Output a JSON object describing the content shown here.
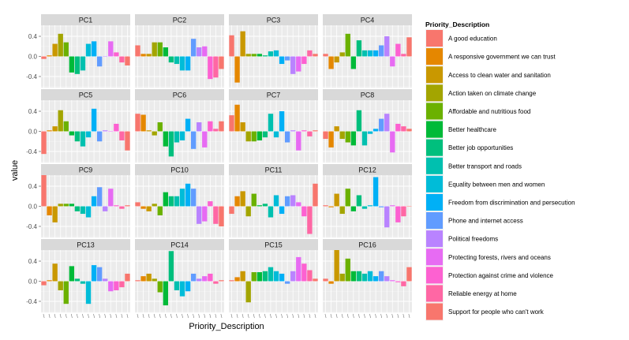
{
  "chart_data": {
    "type": "bar",
    "facet_layout": "4x4",
    "xlabel": "Priority_Description",
    "ylabel": "value",
    "ylim": [
      -0.62,
      0.62
    ],
    "y_ticks": [
      -0.4,
      0.0,
      0.4
    ],
    "y_tick_labels": [
      "-0.4",
      "0.0",
      "0.4"
    ],
    "legend_title": "Priority_Description",
    "legend_position": "right",
    "categories": [
      "A good education",
      "A responsive government we can trust",
      "Access to clean water and sanitation",
      "Action taken on climate change",
      "Affordable and nutritious food",
      "Better healthcare",
      "Better job opportunities",
      "Better transport and roads",
      "Equality between men and women",
      "Freedom from discrimination and persecution",
      "Phone and internet access",
      "Political freedoms",
      "Protecting forests, rivers and oceans",
      "Protection against crime and violence",
      "Reliable energy at home",
      "Support for people who can't work"
    ],
    "colors": [
      "#F8766D",
      "#E58700",
      "#C99800",
      "#A3A500",
      "#6BB100",
      "#00BA38",
      "#00BF7D",
      "#00C0AF",
      "#00BCD8",
      "#00B0F6",
      "#619CFF",
      "#B983FF",
      "#E76BF3",
      "#FD61D1",
      "#FF67A4",
      "#F8766D"
    ],
    "panels": [
      {
        "name": "PC1",
        "values": [
          -0.05,
          0.02,
          0.25,
          0.45,
          0.28,
          -0.32,
          -0.35,
          -0.28,
          0.25,
          0.3,
          -0.2,
          0.0,
          0.3,
          0.08,
          -0.12,
          -0.18
        ]
      },
      {
        "name": "PC2",
        "values": [
          0.22,
          0.05,
          0.05,
          0.28,
          0.28,
          0.18,
          -0.12,
          -0.15,
          -0.28,
          -0.28,
          0.35,
          0.18,
          0.2,
          -0.45,
          -0.42,
          -0.25
        ]
      },
      {
        "name": "PC3",
        "values": [
          0.42,
          -0.52,
          0.5,
          0.05,
          0.05,
          0.05,
          0.02,
          0.1,
          0.12,
          -0.15,
          -0.08,
          -0.35,
          -0.3,
          -0.15,
          0.12,
          0.05
        ]
      },
      {
        "name": "PC4",
        "values": [
          0.05,
          -0.25,
          -0.12,
          0.08,
          0.45,
          -0.25,
          0.32,
          0.12,
          0.12,
          0.12,
          0.22,
          0.4,
          -0.2,
          0.25,
          0.05,
          0.38
        ]
      },
      {
        "name": "PC5",
        "values": [
          -0.45,
          0.02,
          0.1,
          0.42,
          0.2,
          -0.08,
          -0.2,
          -0.3,
          -0.12,
          0.45,
          -0.2,
          0.02,
          0.0,
          0.15,
          -0.18,
          -0.38
        ]
      },
      {
        "name": "PC6",
        "values": [
          0.35,
          0.33,
          0.02,
          -0.08,
          0.18,
          -0.3,
          -0.5,
          -0.22,
          -0.18,
          0.25,
          -0.35,
          0.18,
          -0.32,
          0.2,
          0.05,
          0.2
        ]
      },
      {
        "name": "PC7",
        "values": [
          0.32,
          0.53,
          0.18,
          -0.2,
          -0.2,
          -0.18,
          -0.12,
          0.35,
          -0.12,
          0.4,
          -0.22,
          0.02,
          -0.38,
          0.02,
          -0.1,
          0.02
        ]
      },
      {
        "name": "PC8",
        "values": [
          -0.15,
          -0.32,
          0.1,
          -0.15,
          -0.22,
          -0.28,
          0.42,
          -0.28,
          -0.05,
          0.05,
          0.25,
          0.35,
          -0.42,
          0.15,
          0.1,
          0.05
        ]
      },
      {
        "name": "PC9",
        "values": [
          0.62,
          -0.18,
          -0.32,
          0.05,
          0.05,
          0.05,
          -0.1,
          -0.15,
          -0.22,
          0.2,
          0.38,
          -0.1,
          0.35,
          0.02,
          -0.05,
          0.02
        ]
      },
      {
        "name": "PC10",
        "values": [
          0.08,
          -0.05,
          -0.1,
          0.05,
          -0.18,
          0.28,
          0.2,
          0.2,
          0.35,
          0.45,
          0.35,
          -0.35,
          -0.3,
          0.1,
          -0.35,
          -0.4
        ]
      },
      {
        "name": "PC11",
        "values": [
          -0.15,
          0.2,
          0.3,
          -0.2,
          0.25,
          0.02,
          0.05,
          -0.22,
          0.22,
          -0.15,
          0.2,
          0.22,
          0.08,
          -0.2,
          -0.55,
          0.45
        ]
      },
      {
        "name": "PC12",
        "values": [
          0.02,
          -0.02,
          0.25,
          -0.15,
          0.35,
          -0.1,
          0.22,
          -0.05,
          0.02,
          0.58,
          -0.02,
          -0.42,
          0.02,
          -0.32,
          -0.2,
          0.0
        ]
      },
      {
        "name": "PC13",
        "values": [
          -0.08,
          0.02,
          0.35,
          -0.18,
          -0.45,
          0.3,
          0.05,
          -0.05,
          -0.45,
          0.32,
          0.28,
          0.05,
          -0.2,
          -0.18,
          -0.12,
          0.15
        ]
      },
      {
        "name": "PC14",
        "values": [
          0.02,
          0.1,
          0.15,
          0.05,
          -0.22,
          -0.48,
          0.6,
          -0.18,
          -0.3,
          -0.2,
          0.15,
          0.05,
          0.1,
          0.15,
          -0.05,
          0.02
        ]
      },
      {
        "name": "PC15",
        "values": [
          0.02,
          0.08,
          0.2,
          -0.42,
          0.18,
          0.18,
          0.2,
          0.28,
          0.2,
          0.15,
          -0.05,
          0.2,
          0.48,
          0.35,
          0.22,
          0.05
        ]
      },
      {
        "name": "PC16",
        "values": [
          0.05,
          -0.05,
          0.62,
          0.15,
          0.45,
          0.2,
          0.2,
          0.15,
          0.2,
          0.1,
          0.2,
          0.1,
          0.02,
          -0.02,
          -0.1,
          0.28
        ]
      }
    ]
  }
}
